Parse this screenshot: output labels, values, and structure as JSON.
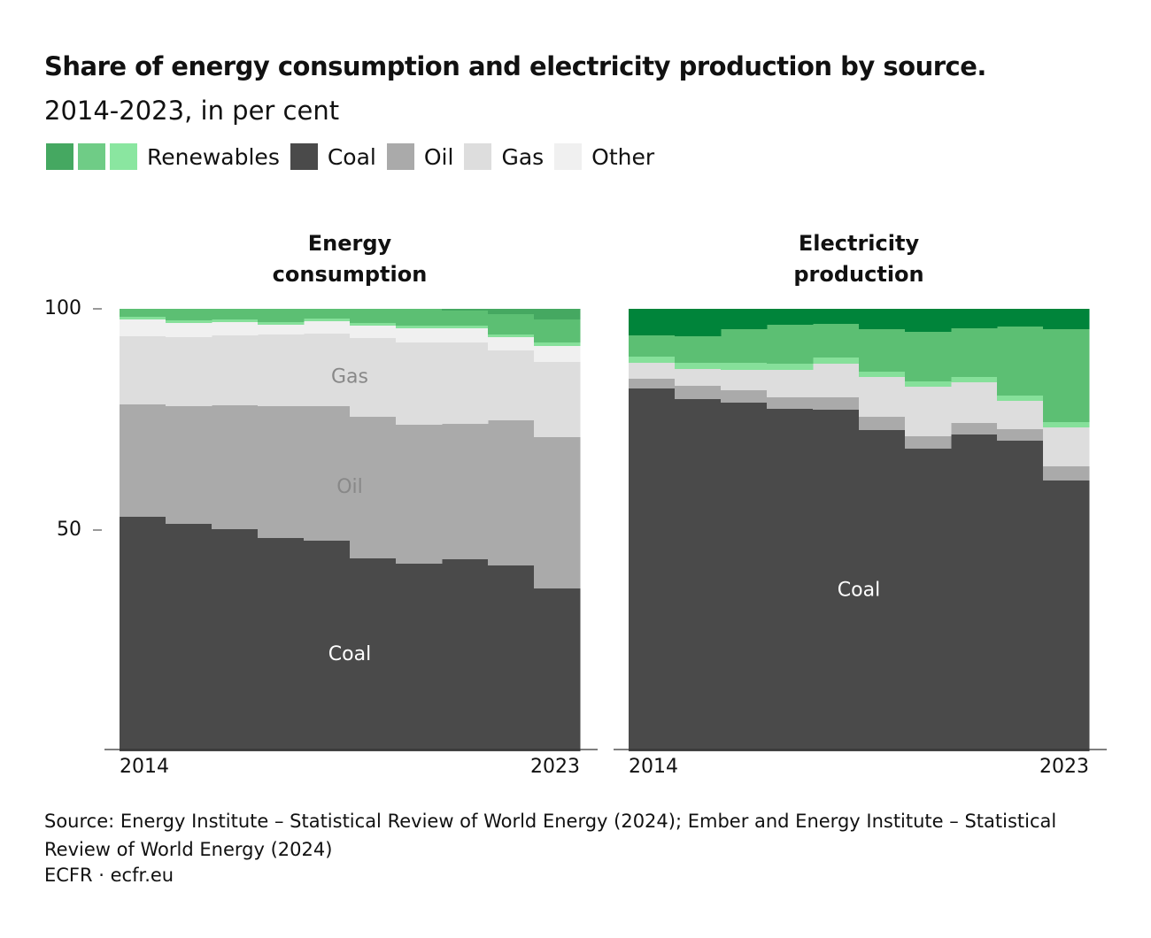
{
  "title": "Share of energy consumption and electricity production by source.",
  "subtitle": "2014-2023, in per cent",
  "legend": [
    {
      "name": "Renewables",
      "colors": [
        "#45a861",
        "#6fcc86",
        "#8ae6a0"
      ]
    },
    {
      "name": "Coal",
      "color": "#4a4a4a"
    },
    {
      "name": "Oil",
      "color": "#aaaaaa"
    },
    {
      "name": "Gas",
      "color": "#dddddd"
    },
    {
      "name": "Other",
      "color": "#f0f0f0"
    }
  ],
  "source": "Source: Energy Institute – Statistical Review of World Energy (2024); Ember and Energy Institute – Statistical Review of World Energy (2024)",
  "credit": "ECFR · ecfr.eu",
  "chart_data": [
    {
      "type": "stacked-step-area",
      "title": "Energy consumption",
      "categories": [
        "2014",
        null,
        null,
        null,
        null,
        null,
        null,
        null,
        null,
        "2023"
      ],
      "ylim": [
        0,
        100
      ],
      "yticks": [
        50,
        100
      ],
      "series": [
        {
          "name": "Coal",
          "color": "#4a4a4a",
          "label": true,
          "values": [
            53.0,
            51.4,
            50.2,
            48.2,
            47.6,
            43.6,
            42.4,
            43.4,
            42.0,
            36.8
          ]
        },
        {
          "name": "Oil",
          "color": "#aaaaaa",
          "label": true,
          "values": [
            25.4,
            26.6,
            28.0,
            29.8,
            30.4,
            32.0,
            31.4,
            30.6,
            32.8,
            34.2
          ]
        },
        {
          "name": "Gas",
          "color": "#dddddd",
          "label": true,
          "values": [
            15.4,
            15.6,
            15.8,
            16.2,
            16.4,
            17.8,
            18.6,
            18.4,
            15.8,
            17.0
          ]
        },
        {
          "name": "Other",
          "color": "#f0f0f0",
          "values": [
            3.8,
            3.2,
            3.0,
            2.2,
            2.8,
            2.8,
            3.2,
            3.2,
            3.0,
            3.6
          ]
        },
        {
          "name": "Renewables",
          "color": "#86e09a",
          "values": [
            0.6,
            0.6,
            0.6,
            0.6,
            0.6,
            0.6,
            0.6,
            0.6,
            0.6,
            0.8
          ]
        },
        {
          "name": "Renewables",
          "color": "#5cbf73",
          "values": [
            1.8,
            2.6,
            2.4,
            3.0,
            2.2,
            3.2,
            3.8,
            3.4,
            4.6,
            5.2
          ]
        },
        {
          "name": "Renewables",
          "color": "#45a861",
          "values": [
            0,
            0,
            0,
            0,
            0,
            0,
            0,
            0.4,
            1.2,
            2.4
          ]
        }
      ]
    },
    {
      "type": "stacked-step-area",
      "title": "Electricity production",
      "categories": [
        "2014",
        null,
        null,
        null,
        null,
        null,
        null,
        null,
        null,
        "2023"
      ],
      "ylim": [
        0,
        100
      ],
      "series": [
        {
          "name": "Coal",
          "color": "#4a4a4a",
          "label": true,
          "values": [
            82.0,
            79.6,
            78.8,
            77.4,
            77.2,
            72.6,
            68.4,
            71.6,
            70.2,
            61.2
          ]
        },
        {
          "name": "Oil",
          "color": "#aaaaaa",
          "values": [
            2.2,
            3.0,
            2.8,
            2.6,
            2.8,
            3.0,
            2.8,
            2.6,
            2.6,
            3.2
          ]
        },
        {
          "name": "Gas",
          "color": "#dddddd",
          "values": [
            3.6,
            3.8,
            4.6,
            6.2,
            7.6,
            9.0,
            11.2,
            9.2,
            6.4,
            8.8
          ]
        },
        {
          "name": "Renewables",
          "color": "#86e09a",
          "values": [
            1.4,
            1.4,
            1.6,
            1.4,
            1.4,
            1.2,
            1.2,
            1.2,
            1.2,
            1.2
          ]
        },
        {
          "name": "Renewables",
          "color": "#5cbf73",
          "values": [
            4.8,
            6.0,
            7.6,
            8.8,
            7.6,
            9.6,
            11.2,
            11.0,
            15.6,
            21.0
          ]
        },
        {
          "name": "Renewables",
          "color": "#00843a",
          "values": [
            6.0,
            6.2,
            4.6,
            3.6,
            3.4,
            4.6,
            5.2,
            4.4,
            4.0,
            4.6
          ]
        }
      ]
    }
  ]
}
